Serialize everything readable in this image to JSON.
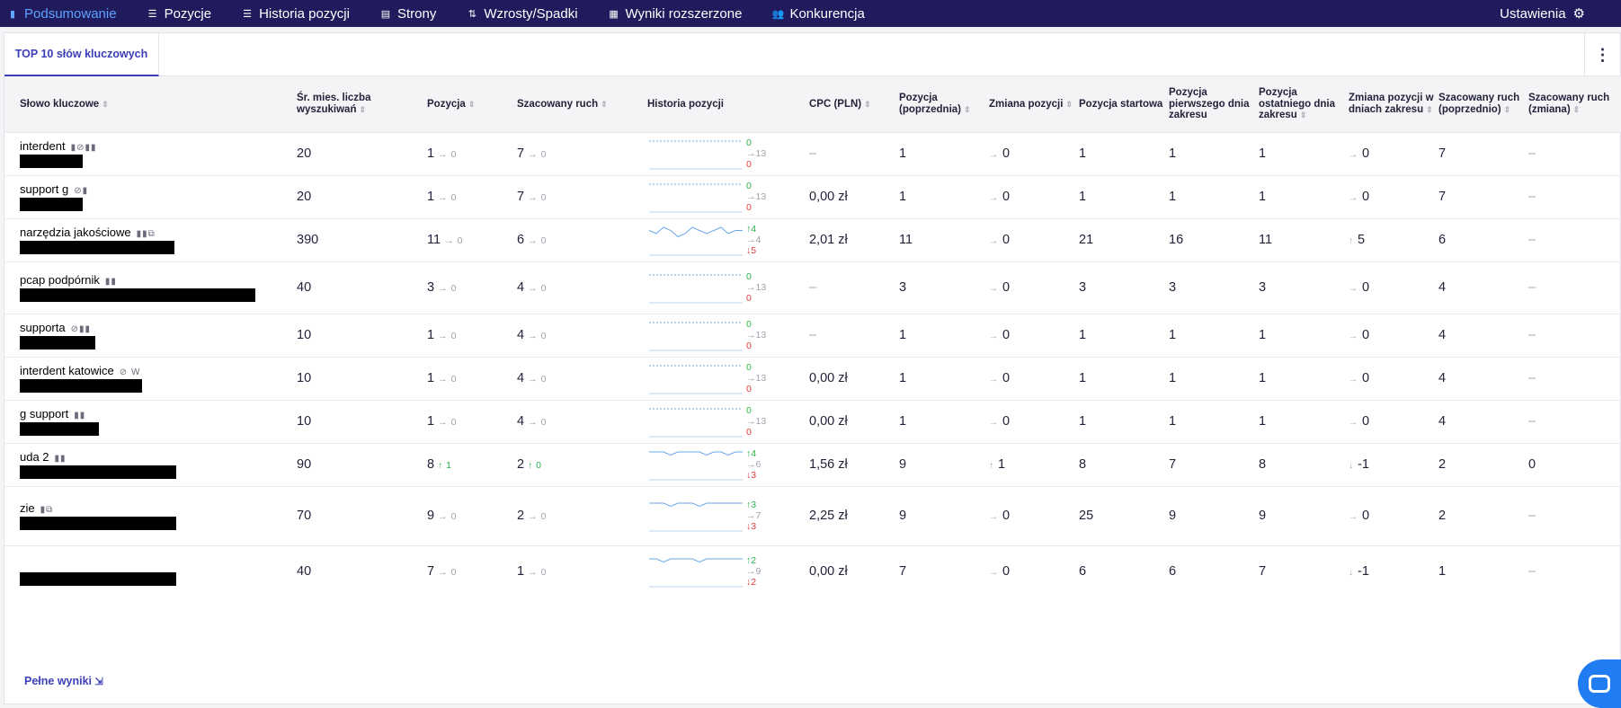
{
  "nav": {
    "items": [
      {
        "label": "Podsumowanie",
        "icon": "chart-bar-icon",
        "glyph": "▮"
      },
      {
        "label": "Pozycje",
        "icon": "list-icon",
        "glyph": "☰"
      },
      {
        "label": "Historia pozycji",
        "icon": "list-icon",
        "glyph": "☰"
      },
      {
        "label": "Strony",
        "icon": "page-icon",
        "glyph": "▤"
      },
      {
        "label": "Wzrosty/Spadki",
        "icon": "up-down-arrows-icon",
        "glyph": "⇅"
      },
      {
        "label": "Wyniki rozszerzone",
        "icon": "grid-icon",
        "glyph": "▦"
      },
      {
        "label": "Konkurencja",
        "icon": "people-icon",
        "glyph": "👥"
      }
    ],
    "settings_label": "Ustawienia"
  },
  "tab": {
    "label": "TOP 10 słów kluczowych"
  },
  "columns": [
    "Słowo kluczowe",
    "Śr. mies. liczba wyszukiwań",
    "Pozycja",
    "Szacowany ruch",
    "Historia pozycji",
    "CPC (PLN)",
    "Pozycja (poprzednia)",
    "Zmiana pozycji",
    "Pozycja startowa",
    "Pozycja pierwszego dnia zakresu",
    "Pozycja ostatniego dnia zakresu",
    "Zmiana pozycji w dniach zakresu",
    "Szacowany ruch (poprzednio)",
    "Szacowany ruch (zmiana)"
  ],
  "rows": [
    {
      "kw": "interdent",
      "redact_w": 70,
      "features": "▮⊘▮▮",
      "volume": "20",
      "pos": "1",
      "pos_chg": "0",
      "pos_chg_dir": "flat",
      "traffic": "7",
      "traffic_chg": "0",
      "traffic_dir": "flat",
      "hist_up": "0",
      "hist_mid": "13",
      "hist_down": "0",
      "hist_up_dir": "flat",
      "hist_down_dir": "flat",
      "spark": [
        1,
        1,
        1,
        1,
        1,
        1,
        1,
        1,
        1,
        1,
        1,
        1,
        1,
        1
      ],
      "cpc": "–",
      "prev": "1",
      "chg": "0",
      "chg_dir": "flat",
      "start": "1",
      "first": "1",
      "last": "1",
      "range_chg": "0",
      "range_dir": "flat",
      "traffic_prev": "7",
      "traffic_change": "–"
    },
    {
      "kw": "support g",
      "redact_w": 70,
      "features": "⊘▮",
      "volume": "20",
      "pos": "1",
      "pos_chg": "0",
      "pos_chg_dir": "flat",
      "traffic": "7",
      "traffic_chg": "0",
      "traffic_dir": "flat",
      "hist_up": "0",
      "hist_mid": "13",
      "hist_down": "0",
      "hist_up_dir": "flat",
      "hist_down_dir": "flat",
      "spark": [
        1,
        1,
        1,
        1,
        1,
        1,
        1,
        1,
        1,
        1,
        1,
        1,
        1,
        1
      ],
      "cpc": "0,00 zł",
      "prev": "1",
      "chg": "0",
      "chg_dir": "flat",
      "start": "1",
      "first": "1",
      "last": "1",
      "range_chg": "0",
      "range_dir": "flat",
      "traffic_prev": "7",
      "traffic_change": "–"
    },
    {
      "kw": "narzędzia jakościowe",
      "redact_w": 172,
      "features": "▮▮⧉",
      "volume": "390",
      "pos": "11",
      "pos_chg": "0",
      "pos_chg_dir": "flat",
      "traffic": "6",
      "traffic_chg": "0",
      "traffic_dir": "flat",
      "hist_up": "4",
      "hist_mid": "4",
      "hist_down": "5",
      "hist_up_dir": "up",
      "hist_down_dir": "down",
      "spark": [
        11,
        12,
        10,
        11,
        13,
        12,
        10,
        11,
        12,
        11,
        10,
        12,
        11,
        11
      ],
      "cpc": "2,01 zł",
      "prev": "11",
      "chg": "0",
      "chg_dir": "flat",
      "start": "21",
      "first": "16",
      "last": "11",
      "range_chg": "5",
      "range_dir": "up",
      "traffic_prev": "6",
      "traffic_change": "–"
    },
    {
      "kw": "pcap podpórnik",
      "redact_w": 262,
      "features": "▮▮",
      "volume": "40",
      "pos": "3",
      "pos_chg": "0",
      "pos_chg_dir": "flat",
      "traffic": "4",
      "traffic_chg": "0",
      "traffic_dir": "flat",
      "hist_up": "0",
      "hist_mid": "13",
      "hist_down": "0",
      "hist_up_dir": "flat",
      "hist_down_dir": "flat",
      "spark": [
        3,
        3,
        3,
        3,
        3,
        3,
        3,
        3,
        3,
        3,
        3,
        3,
        3,
        3
      ],
      "cpc": "–",
      "prev": "3",
      "chg": "0",
      "chg_dir": "flat",
      "start": "3",
      "first": "3",
      "last": "3",
      "range_chg": "0",
      "range_dir": "flat",
      "traffic_prev": "4",
      "traffic_change": "–"
    },
    {
      "kw": "supporta",
      "redact_w": 84,
      "features": "⊘▮▮",
      "volume": "10",
      "pos": "1",
      "pos_chg": "0",
      "pos_chg_dir": "flat",
      "traffic": "4",
      "traffic_chg": "0",
      "traffic_dir": "flat",
      "hist_up": "0",
      "hist_mid": "13",
      "hist_down": "0",
      "hist_up_dir": "flat",
      "hist_down_dir": "flat",
      "spark": [
        1,
        1,
        1,
        1,
        1,
        1,
        1,
        1,
        1,
        1,
        1,
        1,
        1,
        1
      ],
      "cpc": "–",
      "prev": "1",
      "chg": "0",
      "chg_dir": "flat",
      "start": "1",
      "first": "1",
      "last": "1",
      "range_chg": "0",
      "range_dir": "flat",
      "traffic_prev": "4",
      "traffic_change": "–"
    },
    {
      "kw": "interdent katowice",
      "redact_w": 136,
      "features": "⊘ W",
      "volume": "10",
      "pos": "1",
      "pos_chg": "0",
      "pos_chg_dir": "flat",
      "traffic": "4",
      "traffic_chg": "0",
      "traffic_dir": "flat",
      "hist_up": "0",
      "hist_mid": "13",
      "hist_down": "0",
      "hist_up_dir": "flat",
      "hist_down_dir": "flat",
      "spark": [
        1,
        1,
        1,
        1,
        1,
        1,
        1,
        1,
        1,
        1,
        1,
        1,
        1,
        1
      ],
      "cpc": "0,00 zł",
      "prev": "1",
      "chg": "0",
      "chg_dir": "flat",
      "start": "1",
      "first": "1",
      "last": "1",
      "range_chg": "0",
      "range_dir": "flat",
      "traffic_prev": "4",
      "traffic_change": "–"
    },
    {
      "kw": "g support",
      "redact_w": 88,
      "features": "▮▮",
      "volume": "10",
      "pos": "1",
      "pos_chg": "0",
      "pos_chg_dir": "flat",
      "traffic": "4",
      "traffic_chg": "0",
      "traffic_dir": "flat",
      "hist_up": "0",
      "hist_mid": "13",
      "hist_down": "0",
      "hist_up_dir": "flat",
      "hist_down_dir": "flat",
      "spark": [
        1,
        1,
        1,
        1,
        1,
        1,
        1,
        1,
        1,
        1,
        1,
        1,
        1,
        1
      ],
      "cpc": "0,00 zł",
      "prev": "1",
      "chg": "0",
      "chg_dir": "flat",
      "start": "1",
      "first": "1",
      "last": "1",
      "range_chg": "0",
      "range_dir": "flat",
      "traffic_prev": "4",
      "traffic_change": "–"
    },
    {
      "kw": "uda 2",
      "redact_w": 174,
      "features": "▮▮",
      "volume": "90",
      "pos": "8",
      "pos_chg": "1",
      "pos_chg_dir": "up",
      "traffic": "2",
      "traffic_chg": "0",
      "traffic_dir": "up",
      "hist_up": "4",
      "hist_mid": "6",
      "hist_down": "3",
      "hist_up_dir": "up",
      "hist_down_dir": "down",
      "spark": [
        8,
        8,
        8,
        9,
        8,
        8,
        8,
        8,
        9,
        8,
        8,
        9,
        8,
        8
      ],
      "cpc": "1,56 zł",
      "prev": "9",
      "chg": "1",
      "chg_dir": "up",
      "start": "8",
      "first": "7",
      "last": "8",
      "range_chg": "-1",
      "range_dir": "down",
      "traffic_prev": "2",
      "traffic_change": "0"
    },
    {
      "kw": "zie",
      "redact_w": 174,
      "features": "▮⧉",
      "volume": "70",
      "pos": "9",
      "pos_chg": "0",
      "pos_chg_dir": "flat",
      "traffic": "2",
      "traffic_chg": "0",
      "traffic_dir": "flat",
      "hist_up": "3",
      "hist_mid": "7",
      "hist_down": "3",
      "hist_up_dir": "up",
      "hist_down_dir": "down",
      "spark": [
        9,
        9,
        9,
        10,
        9,
        9,
        9,
        10,
        9,
        9,
        9,
        9,
        9,
        9
      ],
      "cpc": "2,25 zł",
      "prev": "9",
      "chg": "0",
      "chg_dir": "flat",
      "start": "25",
      "first": "9",
      "last": "9",
      "range_chg": "0",
      "range_dir": "flat",
      "traffic_prev": "2",
      "traffic_change": "–"
    },
    {
      "kw": "",
      "redact_w": 174,
      "features": "",
      "volume": "40",
      "pos": "7",
      "pos_chg": "0",
      "pos_chg_dir": "flat",
      "traffic": "1",
      "traffic_chg": "0",
      "traffic_dir": "flat",
      "hist_up": "2",
      "hist_mid": "9",
      "hist_down": "2",
      "hist_up_dir": "up",
      "hist_down_dir": "down",
      "spark": [
        7,
        7,
        8,
        7,
        7,
        7,
        7,
        8,
        7,
        7,
        7,
        7,
        7,
        7
      ],
      "cpc": "0,00 zł",
      "prev": "7",
      "chg": "0",
      "chg_dir": "flat",
      "start": "6",
      "first": "6",
      "last": "7",
      "range_chg": "-1",
      "range_dir": "down",
      "traffic_prev": "1",
      "traffic_change": "–"
    }
  ],
  "footer": {
    "link_label": "Pełne wyniki"
  },
  "colors": {
    "nav_bg": "#201b5c",
    "accent": "#3b3fb7",
    "up": "#2bb24c",
    "down": "#e23b3b",
    "spark": "#6aa8e8"
  }
}
